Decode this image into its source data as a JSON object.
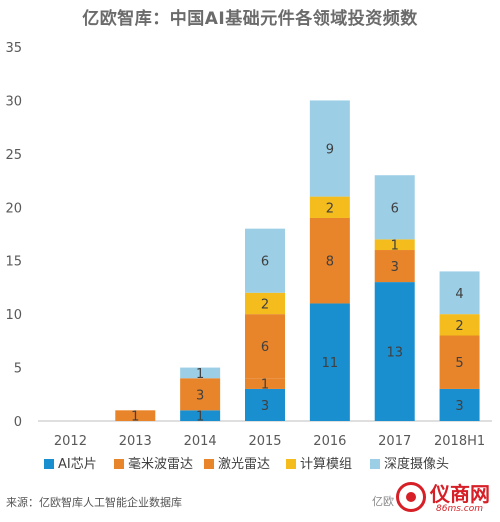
{
  "title": "亿欧智库：中国AI基础元件各领域投资频数",
  "source_note": "来源：亿欧智库人工智能企业数据库",
  "watermark": {
    "left_text": "亿欧",
    "brand": "仪商网",
    "url": "86ms.com"
  },
  "chart_data": {
    "type": "bar",
    "stacked": true,
    "title": "亿欧智库：中国AI基础元件各领域投资频数",
    "categories": [
      "2012",
      "2013",
      "2014",
      "2015",
      "2016",
      "2017",
      "2018H1"
    ],
    "ylim": [
      0,
      35
    ],
    "yticks": [
      0,
      5,
      10,
      15,
      20,
      25,
      30,
      35
    ],
    "grid": false,
    "legend_position": "bottom",
    "series": [
      {
        "name": "AI芯片",
        "color": "#1a8fd0",
        "values": [
          0,
          0,
          1,
          3,
          11,
          13,
          3
        ]
      },
      {
        "name": "毫米波雷达",
        "color": "#e8842a",
        "values": [
          0,
          0,
          0,
          1,
          0,
          0,
          0
        ]
      },
      {
        "name": "激光雷达",
        "color": "#e8842a",
        "values": [
          0,
          1,
          3,
          6,
          8,
          3,
          5
        ]
      },
      {
        "name": "计算模组",
        "color": "#f4bc1c",
        "values": [
          0,
          0,
          0,
          2,
          2,
          1,
          2
        ]
      },
      {
        "name": "深度摄像头",
        "color": "#9ccfe6",
        "values": [
          0,
          0,
          1,
          6,
          9,
          6,
          4
        ]
      }
    ]
  }
}
